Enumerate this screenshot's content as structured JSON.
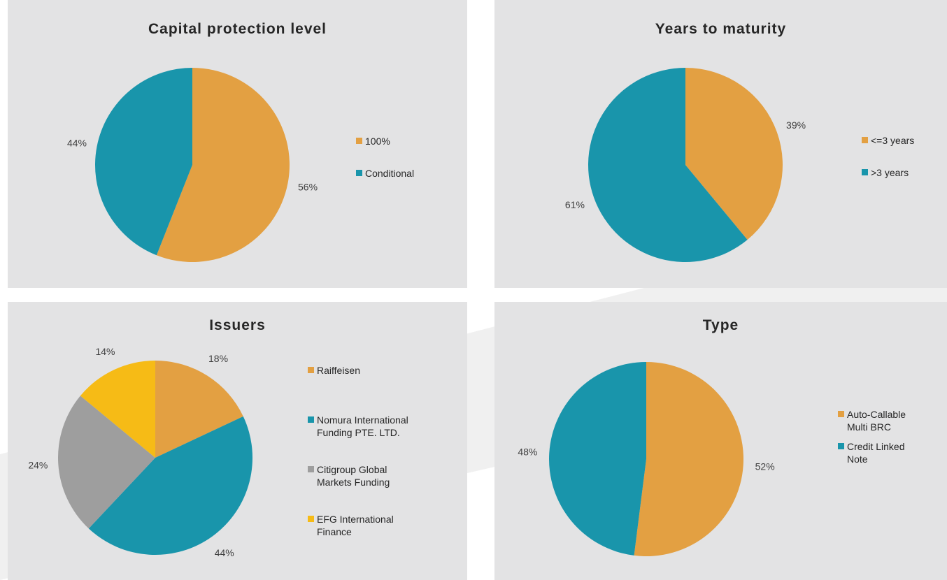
{
  "colors": {
    "orange": "#e3a042",
    "teal": "#1995ab",
    "gray": "#9e9e9e",
    "yellow": "#f6bb16",
    "panel_bg": "#e3e3e4"
  },
  "chart_data": [
    {
      "type": "pie",
      "title": "Capital protection level",
      "categories": [
        "100%",
        "Conditional"
      ],
      "values": [
        56,
        44
      ],
      "labels": [
        "56%",
        "44%"
      ],
      "colors": [
        "#e3a042",
        "#1995ab"
      ],
      "legend": "right"
    },
    {
      "type": "pie",
      "title": "Years to maturity",
      "categories": [
        "<=3 years",
        ">3 years"
      ],
      "values": [
        39,
        61
      ],
      "labels": [
        "39%",
        "61%"
      ],
      "colors": [
        "#e3a042",
        "#1995ab"
      ],
      "legend": "right"
    },
    {
      "type": "pie",
      "title": "Issuers",
      "categories": [
        "Raiffeisen",
        "Nomura International Funding PTE. LTD.",
        "Citigroup Global Markets Funding",
        "EFG International Finance"
      ],
      "values": [
        18,
        44,
        24,
        14
      ],
      "labels": [
        "18%",
        "44%",
        "24%",
        "14%"
      ],
      "colors": [
        "#e3a042",
        "#1995ab",
        "#9e9e9e",
        "#f6bb16"
      ],
      "legend": "right"
    },
    {
      "type": "pie",
      "title": "Type",
      "categories": [
        "Auto-Callable Multi BRC",
        "Credit Linked Note"
      ],
      "values": [
        52,
        48
      ],
      "labels": [
        "52%",
        "48%"
      ],
      "colors": [
        "#e3a042",
        "#1995ab"
      ],
      "legend": "right"
    }
  ],
  "legend_text": [
    [
      "100%",
      "Conditional"
    ],
    [
      "<=3 years",
      ">3 years"
    ],
    [
      "Raiffeisen",
      "Nomura International\nFunding PTE. LTD.",
      "Citigroup Global\nMarkets Funding",
      "EFG International\nFinance"
    ],
    [
      "Auto-Callable\nMulti BRC",
      "Credit Linked\nNote"
    ]
  ]
}
